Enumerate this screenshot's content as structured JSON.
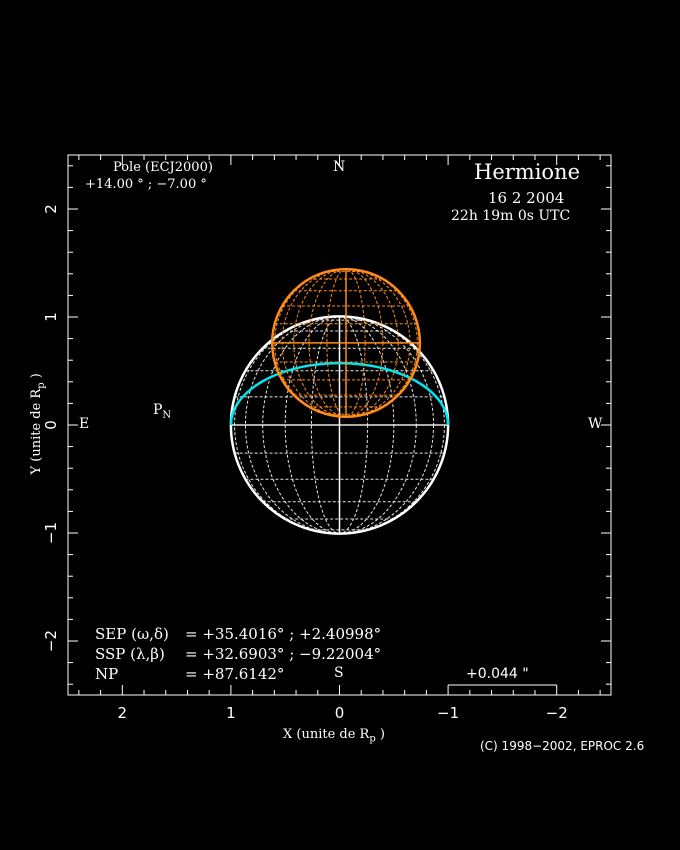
{
  "colors": {
    "background": "#000000",
    "axes": "#ffffff",
    "planet": "#ffffff",
    "satellite": "#ff8c1a",
    "terminator": "#00e5ee"
  },
  "chart_data": {
    "type": "diagram",
    "title": "Hermione",
    "date": "16 2 2004",
    "time": "22h 19m 0s UTC",
    "xlabel": "X (unite de R",
    "xlabel_sub": "p",
    "ylabel": "Y (unite de R",
    "ylabel_sub": "p",
    "xlim": [
      2.5,
      -2.5
    ],
    "ylim": [
      -2.5,
      2.5
    ],
    "xticks": [
      2,
      1,
      0,
      -1,
      -2
    ],
    "xtick_labels": [
      "2",
      "1",
      "0",
      "−1",
      "−2"
    ],
    "yticks": [
      2,
      1,
      0,
      -1,
      -2
    ],
    "ytick_labels": [
      "2",
      "1",
      "0",
      "−1",
      "−2"
    ],
    "compass": {
      "N": "N",
      "S": "S",
      "E": "E",
      "W": "W"
    },
    "pole_marker": "P",
    "pole_marker_sub": "N",
    "pole_label": "Pole (ECJ2000)",
    "pole_values": "+14.00  ° ; −7.00   °",
    "primary": {
      "center": [
        0,
        0
      ],
      "radius": 1
    },
    "secondary": {
      "center": [
        -0.06,
        0.76
      ],
      "radius": 0.68
    },
    "terminator_height": 0.57,
    "info_lines": [
      {
        "label": "SEP (ω,δ)",
        "value": "= +35.4016°  ; +2.40998°"
      },
      {
        "label": "SSP (λ,β)",
        "value": "= +32.6903°  ; −9.22004°"
      },
      {
        "label": "NP",
        "value": "= +87.6142°"
      }
    ],
    "scale_label": "+0.044 \"",
    "scale_bar_units": [
      -1,
      -2
    ],
    "copyright": "(C) 1998−2002, EPROC 2.6"
  }
}
